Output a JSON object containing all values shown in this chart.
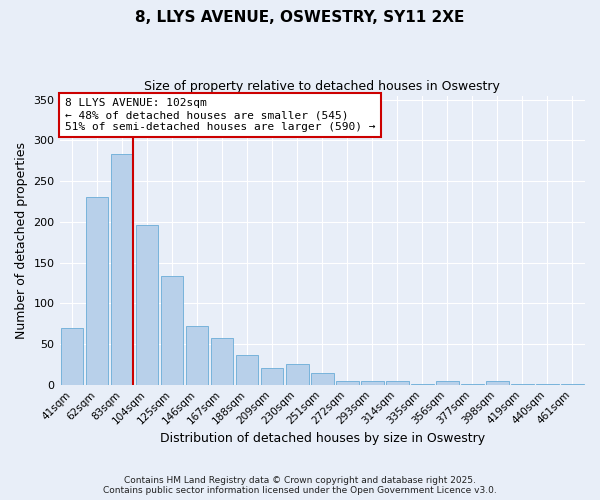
{
  "title": "8, LLYS AVENUE, OSWESTRY, SY11 2XE",
  "subtitle": "Size of property relative to detached houses in Oswestry",
  "xlabel": "Distribution of detached houses by size in Oswestry",
  "ylabel": "Number of detached properties",
  "bar_labels": [
    "41sqm",
    "62sqm",
    "83sqm",
    "104sqm",
    "125sqm",
    "146sqm",
    "167sqm",
    "188sqm",
    "209sqm",
    "230sqm",
    "251sqm",
    "272sqm",
    "293sqm",
    "314sqm",
    "335sqm",
    "356sqm",
    "377sqm",
    "398sqm",
    "419sqm",
    "440sqm",
    "461sqm"
  ],
  "bar_values": [
    70,
    230,
    283,
    196,
    133,
    72,
    57,
    36,
    20,
    25,
    14,
    4,
    4,
    4,
    1,
    5,
    1,
    5,
    1,
    1,
    1
  ],
  "bar_color": "#b8d0ea",
  "bar_edge_color": "#6aacd8",
  "background_color": "#e8eef8",
  "grid_color": "#ffffff",
  "vline_color": "#cc0000",
  "annotation_text": "8 LLYS AVENUE: 102sqm\n← 48% of detached houses are smaller (545)\n51% of semi-detached houses are larger (590) →",
  "annotation_box_color": "#ffffff",
  "annotation_box_edge_color": "#cc0000",
  "ylim": [
    0,
    355
  ],
  "yticks": [
    0,
    50,
    100,
    150,
    200,
    250,
    300,
    350
  ],
  "footer_line1": "Contains HM Land Registry data © Crown copyright and database right 2025.",
  "footer_line2": "Contains public sector information licensed under the Open Government Licence v3.0."
}
